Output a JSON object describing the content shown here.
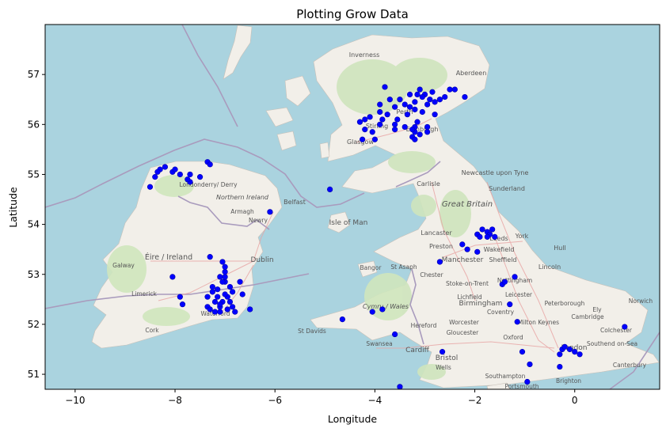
{
  "chart_data": {
    "type": "scatter",
    "title": "Plotting Grow Data",
    "xlabel": "Longitude",
    "ylabel": "Latitude",
    "xlim": [
      -10.6,
      1.7
    ],
    "ylim": [
      50.7,
      58.0
    ],
    "xticks": [
      -10,
      -8,
      -6,
      -4,
      -2,
      0
    ],
    "yticks": [
      51,
      52,
      53,
      54,
      55,
      56,
      57
    ],
    "grid": false,
    "legend": "none",
    "marker_color": "#0000ff",
    "background": "OpenStreetMap basemap of Great Britain and Ireland",
    "series": [
      {
        "points": [
          [
            -3.1,
            56.7
          ],
          [
            -3.3,
            56.6
          ],
          [
            -3.5,
            56.5
          ],
          [
            -3.0,
            56.6
          ],
          [
            -2.9,
            56.5
          ],
          [
            -2.8,
            56.45
          ],
          [
            -2.7,
            56.5
          ],
          [
            -2.6,
            56.55
          ],
          [
            -2.95,
            56.4
          ],
          [
            -3.2,
            56.45
          ],
          [
            -3.4,
            56.4
          ],
          [
            -3.6,
            56.35
          ],
          [
            -3.7,
            56.5
          ],
          [
            -3.8,
            56.75
          ],
          [
            -2.5,
            56.7
          ],
          [
            -2.4,
            56.7
          ],
          [
            -2.2,
            56.55
          ],
          [
            -3.05,
            56.55
          ],
          [
            -3.15,
            56.6
          ],
          [
            -2.85,
            56.65
          ],
          [
            -3.2,
            56.3
          ],
          [
            -3.35,
            56.2
          ],
          [
            -3.9,
            56.25
          ],
          [
            -3.85,
            56.1
          ],
          [
            -3.9,
            56.0
          ],
          [
            -4.1,
            56.15
          ],
          [
            -4.3,
            56.05
          ],
          [
            -4.2,
            55.9
          ],
          [
            -4.05,
            55.85
          ],
          [
            -3.6,
            56.0
          ],
          [
            -3.6,
            55.9
          ],
          [
            -3.4,
            55.95
          ],
          [
            -3.2,
            55.85
          ],
          [
            -3.25,
            55.75
          ],
          [
            -3.15,
            56.05
          ],
          [
            -2.95,
            55.95
          ],
          [
            -2.95,
            55.85
          ],
          [
            -3.1,
            55.8
          ],
          [
            -4.0,
            55.7
          ],
          [
            -4.25,
            55.7
          ],
          [
            -3.2,
            55.95
          ],
          [
            -3.25,
            55.9
          ],
          [
            -3.2,
            55.7
          ],
          [
            -3.55,
            56.1
          ],
          [
            -3.75,
            56.2
          ],
          [
            -4.2,
            56.1
          ],
          [
            -3.9,
            56.4
          ],
          [
            -3.3,
            56.35
          ],
          [
            -3.05,
            56.25
          ],
          [
            -2.8,
            56.2
          ],
          [
            -8.5,
            54.75
          ],
          [
            -8.4,
            54.95
          ],
          [
            -8.3,
            55.1
          ],
          [
            -8.2,
            55.15
          ],
          [
            -8.05,
            55.05
          ],
          [
            -7.9,
            55.0
          ],
          [
            -7.7,
            55.0
          ],
          [
            -7.5,
            54.95
          ],
          [
            -7.35,
            55.25
          ],
          [
            -7.3,
            55.2
          ],
          [
            -7.7,
            54.85
          ],
          [
            -8.0,
            55.1
          ],
          [
            -8.35,
            55.05
          ],
          [
            -7.75,
            54.9
          ],
          [
            -6.1,
            54.25
          ],
          [
            -4.9,
            54.7
          ],
          [
            -7.3,
            53.35
          ],
          [
            -7.05,
            53.25
          ],
          [
            -7.0,
            53.15
          ],
          [
            -7.1,
            52.95
          ],
          [
            -7.0,
            52.85
          ],
          [
            -6.9,
            52.75
          ],
          [
            -6.85,
            52.65
          ],
          [
            -6.7,
            52.85
          ],
          [
            -6.65,
            52.6
          ],
          [
            -6.95,
            52.55
          ],
          [
            -7.2,
            52.45
          ],
          [
            -7.35,
            52.35
          ],
          [
            -7.2,
            52.25
          ],
          [
            -7.1,
            52.25
          ],
          [
            -6.95,
            52.3
          ],
          [
            -6.85,
            52.35
          ],
          [
            -7.05,
            52.45
          ],
          [
            -7.15,
            52.55
          ],
          [
            -7.25,
            52.65
          ],
          [
            -7.35,
            52.55
          ],
          [
            -7.25,
            52.75
          ],
          [
            -7.0,
            52.95
          ],
          [
            -7.15,
            52.7
          ],
          [
            -7.0,
            52.6
          ],
          [
            -6.9,
            52.45
          ],
          [
            -7.3,
            52.3
          ],
          [
            -7.1,
            52.35
          ],
          [
            -6.8,
            52.25
          ],
          [
            -6.5,
            52.3
          ],
          [
            -7.0,
            53.05
          ],
          [
            -7.05,
            52.85
          ],
          [
            -7.1,
            52.4
          ],
          [
            -8.05,
            52.95
          ],
          [
            -7.9,
            52.55
          ],
          [
            -7.85,
            52.4
          ],
          [
            -4.65,
            52.1
          ],
          [
            -4.05,
            52.25
          ],
          [
            -3.85,
            52.3
          ],
          [
            -3.6,
            51.8
          ],
          [
            -3.5,
            50.75
          ],
          [
            -2.65,
            51.45
          ],
          [
            -2.7,
            53.25
          ],
          [
            -2.25,
            53.6
          ],
          [
            -2.15,
            53.5
          ],
          [
            -1.95,
            53.8
          ],
          [
            -1.9,
            53.75
          ],
          [
            -1.85,
            53.9
          ],
          [
            -1.75,
            53.85
          ],
          [
            -1.7,
            53.8
          ],
          [
            -1.65,
            53.9
          ],
          [
            -1.6,
            53.75
          ],
          [
            -1.95,
            53.45
          ],
          [
            -1.75,
            53.75
          ],
          [
            -1.45,
            52.8
          ],
          [
            -1.4,
            52.85
          ],
          [
            -1.2,
            52.95
          ],
          [
            -1.3,
            52.4
          ],
          [
            -1.15,
            52.05
          ],
          [
            -1.05,
            51.45
          ],
          [
            -0.9,
            51.2
          ],
          [
            -0.95,
            50.85
          ],
          [
            -0.3,
            51.15
          ],
          [
            -0.25,
            51.5
          ],
          [
            -0.1,
            51.5
          ],
          [
            0.0,
            51.45
          ],
          [
            0.1,
            51.4
          ],
          [
            1.0,
            51.95
          ],
          [
            -0.3,
            51.4
          ],
          [
            -0.2,
            51.55
          ]
        ]
      }
    ]
  },
  "map_labels": {
    "inverness": "Inverness",
    "aberdeen": "Aberdeen",
    "perth": "Perth",
    "stirling": "Stirling",
    "glasgow": "Glasgow",
    "edinburgh": "Edinburgh",
    "carlisle": "Carlisle",
    "newcastle": "Newcastle upon Tyne",
    "sunderland": "Sunderland",
    "great_britain": "Great Britain",
    "londonderry": "Londonderry/ Derry",
    "northern_ireland": "Northern Ireland",
    "belfast": "Belfast",
    "armagh": "Armagh",
    "newry": "Newry",
    "isle_of_man": "Isle of Man",
    "lancaster": "Lancaster",
    "leeds": "Leeds",
    "york": "York",
    "hull": "Hull",
    "preston": "Preston",
    "wakefield": "Wakefield",
    "manchester": "Manchester",
    "sheffield": "Sheffield",
    "lincoln": "Lincoln",
    "eire": "Éire / Ireland",
    "dublin": "Dublin",
    "galway": "Galway",
    "limerick": "Limerick",
    "cork": "Cork",
    "waterford": "Waterford",
    "bangor": "Bangor",
    "st_asaph": "St Asaph",
    "chester": "Chester",
    "stoke": "Stoke-on-Trent",
    "nottingham": "Nottingham",
    "lichfield": "Lichfield",
    "leicester": "Leicester",
    "birmingham": "Birmingham",
    "coventry": "Coventry",
    "peterborough": "Peterborough",
    "ely": "Ely",
    "norwich": "Norwich",
    "cymru": "Cymru / Wales",
    "st_davids": "St Davids",
    "hereford": "Hereford",
    "worcester": "Worcester",
    "gloucester": "Gloucester",
    "milton_keynes": "Milton Keynes",
    "cambridge": "Cambridge",
    "colchester": "Colchester",
    "swansea": "Swansea",
    "cardiff": "Cardiff",
    "bristol": "Bristol",
    "oxford": "Oxford",
    "london": "London",
    "southend": "Southend on-Sea",
    "wells": "Wells",
    "canterbury": "Canterbury",
    "southampton": "Southampton",
    "brighton": "Brighton",
    "portsmouth": "Portsmouth"
  },
  "colors": {
    "sea": "#aad3df",
    "land": "#f2efe9",
    "vegetation": "#cfe5bd",
    "border": "#a99bbd",
    "road": "#e8a3a3"
  }
}
